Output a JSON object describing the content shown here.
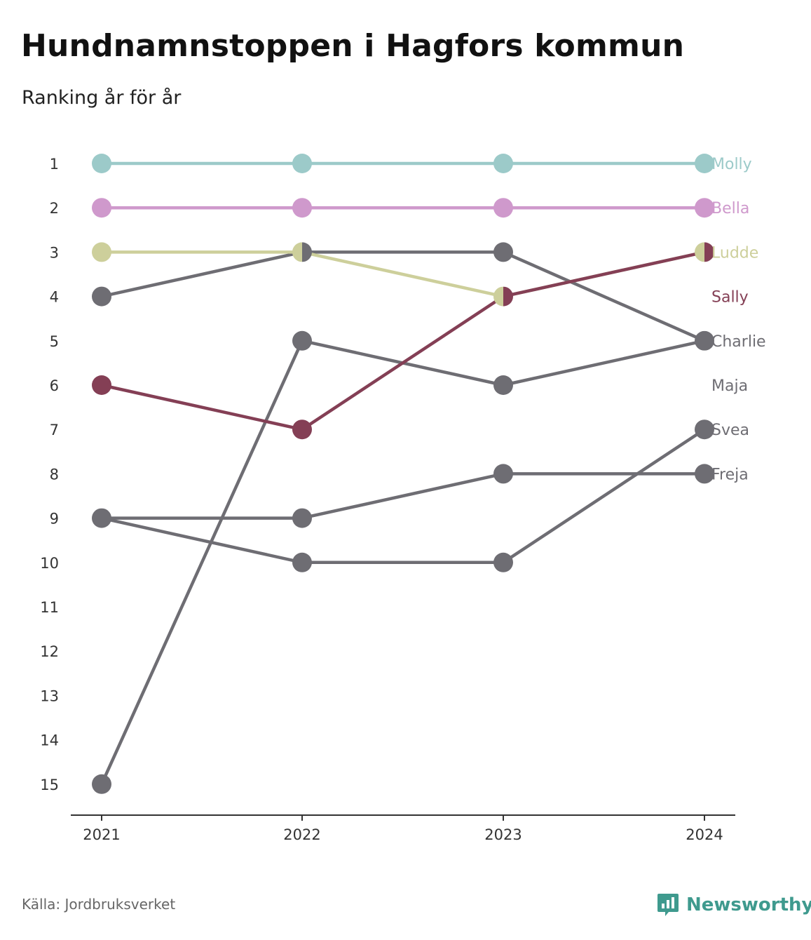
{
  "title": "Hundnamnstoppen i Hagfors kommun",
  "subtitle": "Ranking år för år",
  "source": "Källa: Jordbruksverket",
  "brand": {
    "name": "Newsworthy",
    "icon": "newsworthy-logo-icon",
    "color": "#3f9a8e"
  },
  "chart_data": {
    "type": "line",
    "subtype": "bump",
    "x": [
      "2021",
      "2022",
      "2023",
      "2024"
    ],
    "y_ticks": [
      "1",
      "2",
      "3",
      "4",
      "5",
      "6",
      "7",
      "8",
      "9",
      "10",
      "11",
      "12",
      "13",
      "14",
      "15"
    ],
    "y_range": [
      1,
      15
    ],
    "y_reversed": true,
    "grid": false,
    "labels_position": "right-end",
    "series": [
      {
        "name": "Molly",
        "color": "#9ccac9",
        "values": [
          1,
          1,
          1,
          1
        ]
      },
      {
        "name": "Bella",
        "color": "#cf99cc",
        "values": [
          2,
          2,
          2,
          2
        ]
      },
      {
        "name": "Ludde",
        "color": "#cdcf9b",
        "values": [
          3,
          3,
          4,
          3
        ]
      },
      {
        "name": "Sally",
        "color": "#843f55",
        "values": [
          6,
          7,
          4,
          3
        ]
      },
      {
        "name": "Charlie",
        "color": "#6e6d73",
        "values": [
          4,
          3,
          3,
          5
        ]
      },
      {
        "name": "Maja",
        "color": "#6e6d73",
        "values": [
          15,
          5,
          6,
          5
        ]
      },
      {
        "name": "Svea",
        "color": "#6e6d73",
        "values": [
          9,
          10,
          10,
          7
        ]
      },
      {
        "name": "Freja",
        "color": "#6e6d73",
        "values": [
          9,
          9,
          8,
          8
        ]
      }
    ],
    "end_labels": [
      {
        "name": "Molly",
        "rank": 1,
        "color": "#9ccac9"
      },
      {
        "name": "Bella",
        "rank": 2,
        "color": "#cf99cc"
      },
      {
        "name": "Ludde",
        "rank": 3,
        "color": "#cdcf9b"
      },
      {
        "name": "Sally",
        "rank": 4,
        "color": "#843f55"
      },
      {
        "name": "Charlie",
        "rank": 5,
        "color": "#6e6d73"
      },
      {
        "name": "Maja",
        "rank": 6,
        "color": "#6e6d73"
      },
      {
        "name": "Svea",
        "rank": 7,
        "color": "#6e6d73"
      },
      {
        "name": "Freja",
        "rank": 8,
        "color": "#6e6d73"
      }
    ]
  }
}
